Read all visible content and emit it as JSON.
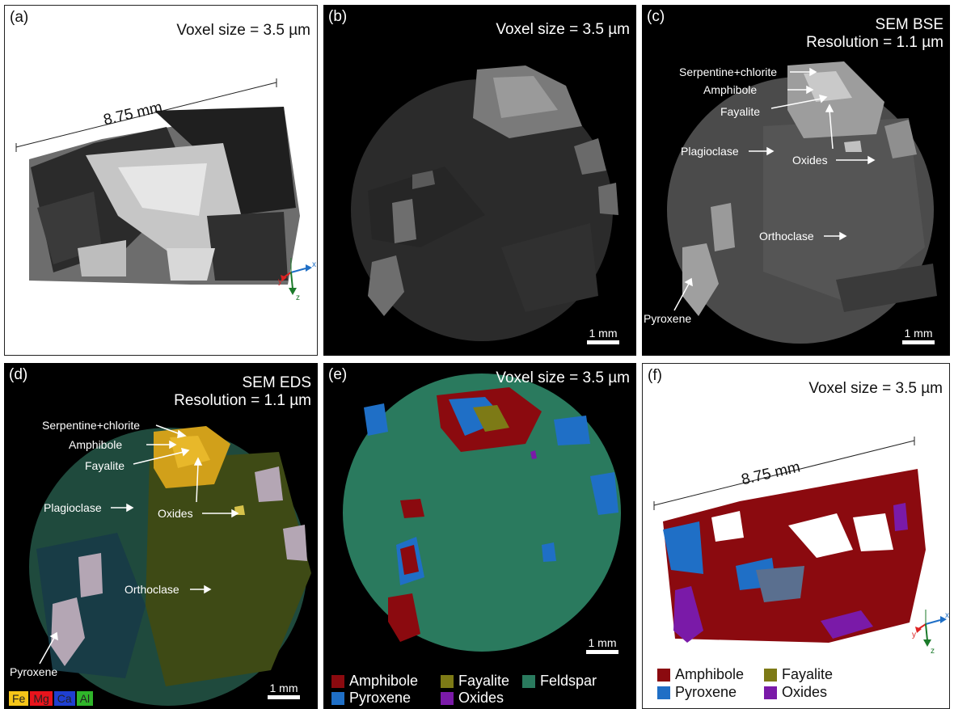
{
  "panels": {
    "a": {
      "label": "(a)",
      "top_text": "Voxel size = 3.5 µm",
      "distance": "8.75 mm",
      "axes": {
        "x": "x",
        "y": "y",
        "z": "z"
      }
    },
    "b": {
      "label": "(b)",
      "top_text": "Voxel size = 3.5 µm",
      "scale": "1 mm"
    },
    "c": {
      "label": "(c)",
      "top_line1": "SEM BSE",
      "top_line2": "Resolution = 1.1 µm",
      "scale": "1 mm",
      "annotations": {
        "serp": "Serpentine+chlorite",
        "amph": "Amphibole",
        "fay": "Fayalite",
        "plag": "Plagioclase",
        "oxid": "Oxides",
        "orth": "Orthoclase",
        "pyr": "Pyroxene"
      }
    },
    "d": {
      "label": "(d)",
      "top_line1": "SEM EDS",
      "top_line2": "Resolution = 1.1 µm",
      "scale": "1 mm",
      "annotations": {
        "serp": "Serpentine+chlorite",
        "amph": "Amphibole",
        "fay": "Fayalite",
        "plag": "Plagioclase",
        "oxid": "Oxides",
        "orth": "Orthoclase",
        "pyr": "Pyroxene"
      },
      "element_key": [
        {
          "label": "Fe",
          "color": "#f5c518"
        },
        {
          "label": "Mg",
          "color": "#e8141c"
        },
        {
          "label": "Ca",
          "color": "#1f3fd0"
        },
        {
          "label": "Al",
          "color": "#2fb52a"
        }
      ]
    },
    "e": {
      "label": "(e)",
      "top_text": "Voxel size = 3.5 µm",
      "scale": "1 mm",
      "legend": [
        {
          "label": "Amphibole",
          "color": "#8b0a0f"
        },
        {
          "label": "Fayalite",
          "color": "#7d7a16"
        },
        {
          "label": "Feldspar",
          "color": "#2a7a5e"
        },
        {
          "label": "Pyroxene",
          "color": "#1f6fc6"
        },
        {
          "label": "Oxides",
          "color": "#7a1aa8"
        }
      ]
    },
    "f": {
      "label": "(f)",
      "top_text": "Voxel size = 3.5 µm",
      "distance": "8.75 mm",
      "axes": {
        "x": "x",
        "y": "y",
        "z": "z"
      },
      "legend": [
        {
          "label": "Amphibole",
          "color": "#8b0a0f"
        },
        {
          "label": "Fayalite",
          "color": "#7d7a16"
        },
        {
          "label": "Pyroxene",
          "color": "#1f6fc6"
        },
        {
          "label": "Oxides",
          "color": "#7a1aa8"
        }
      ]
    }
  }
}
